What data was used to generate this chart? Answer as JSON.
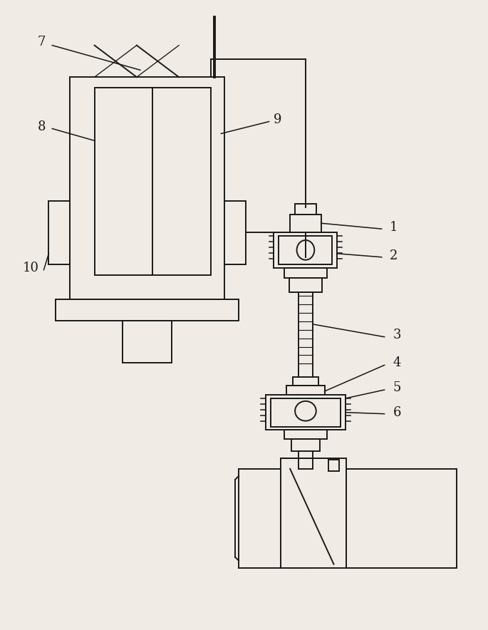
{
  "bg_color": "#f0ece5",
  "line_color": "#1a1a1a",
  "line_width": 1.4,
  "fig_width": 6.85,
  "fig_height": 8.84
}
